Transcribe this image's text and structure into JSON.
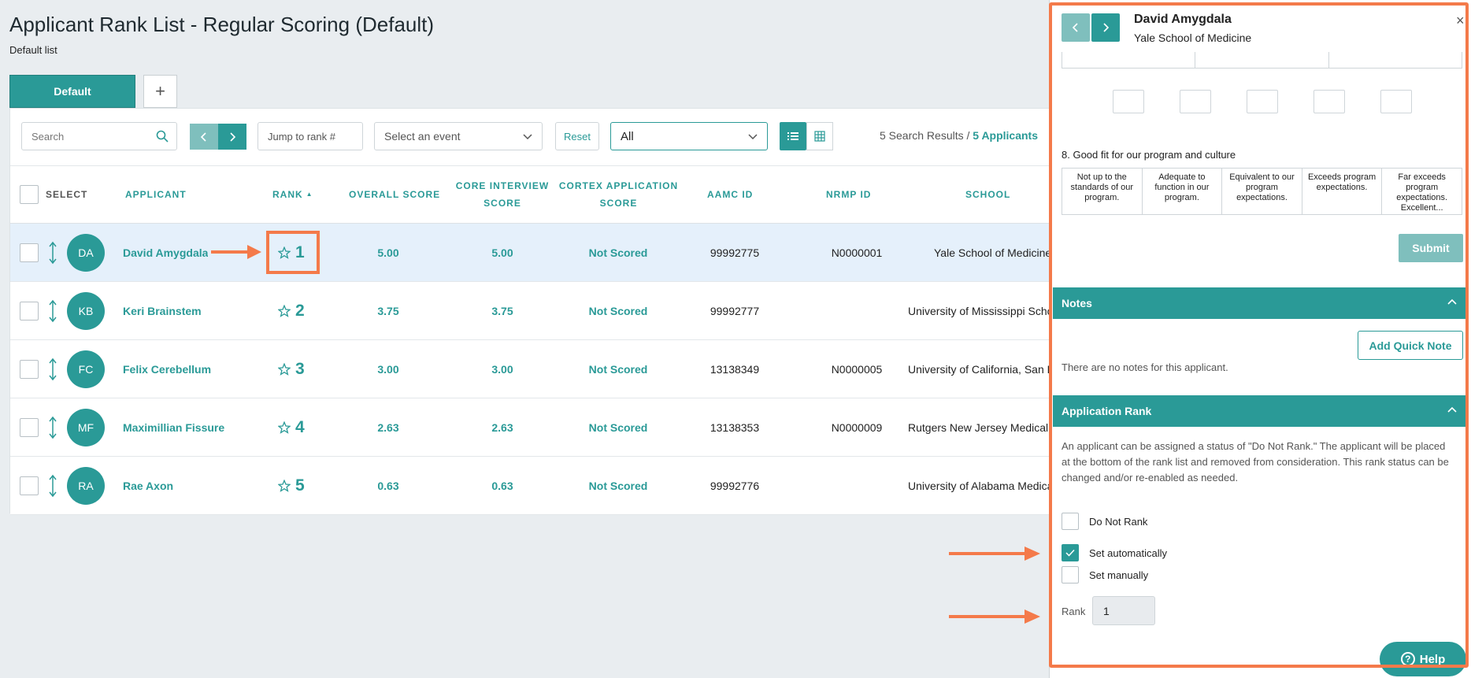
{
  "page": {
    "title": "Applicant Rank List - Regular Scoring (Default)",
    "subtitle": "Default list"
  },
  "tabs": {
    "default_label": "Default",
    "add_label": "+"
  },
  "toolbar": {
    "search_placeholder": "Search",
    "jump_placeholder": "Jump to rank #",
    "event_placeholder": "Select an event",
    "reset_label": "Reset",
    "filter_value": "All",
    "results_text": "5 Search Results / ",
    "results_apps": "5 Applicants"
  },
  "table": {
    "headers": {
      "select": "SELECT",
      "applicant": "APPLICANT",
      "rank": "RANK",
      "overall": "OVERALL SCORE",
      "core_1": "CORE INTERVIEW",
      "core_2": "SCORE",
      "cortex_1": "CORTEX APPLICATION",
      "cortex_2": "SCORE",
      "aamc": "AAMC ID",
      "nrmp": "NRMP ID",
      "school": "SCHOOL"
    },
    "rows": [
      {
        "initials": "DA",
        "name": "David Amygdala",
        "rank": "1",
        "overall": "5.00",
        "core": "5.00",
        "cortex": "Not Scored",
        "aamc": "99992775",
        "nrmp": "N0000001",
        "school": "Yale School of Medicine"
      },
      {
        "initials": "KB",
        "name": "Keri Brainstem",
        "rank": "2",
        "overall": "3.75",
        "core": "3.75",
        "cortex": "Not Scored",
        "aamc": "99992777",
        "nrmp": "",
        "school": "University of Mississippi School of Medicine"
      },
      {
        "initials": "FC",
        "name": "Felix Cerebellum",
        "rank": "3",
        "overall": "3.00",
        "core": "3.00",
        "cortex": "Not Scored",
        "aamc": "13138349",
        "nrmp": "N0000005",
        "school": "University of California, San Diego"
      },
      {
        "initials": "MF",
        "name": "Maximillian Fissure",
        "rank": "4",
        "overall": "2.63",
        "core": "2.63",
        "cortex": "Not Scored",
        "aamc": "13138353",
        "nrmp": "N0000009",
        "school": "Rutgers New Jersey Medical School"
      },
      {
        "initials": "RA",
        "name": "Rae Axon",
        "rank": "5",
        "overall": "0.63",
        "core": "0.63",
        "cortex": "Not Scored",
        "aamc": "99992776",
        "nrmp": "",
        "school": "University of Alabama Medical School"
      }
    ]
  },
  "drawer": {
    "applicant_name": "David Amygdala",
    "applicant_school": "Yale School of Medicine",
    "close_glyph": "×",
    "question_8": "8. Good fit for our program and culture",
    "scale": [
      "Not up to the standards of our program.",
      "Adequate to function in our program.",
      "Equivalent to our program expectations.",
      "Exceeds program expectations.",
      "Far exceeds program expectations. Excellent..."
    ],
    "submit_label": "Submit",
    "notes": {
      "title": "Notes",
      "add_label": "Add Quick Note",
      "empty_text": "There are no notes for this applicant."
    },
    "app_rank": {
      "title": "Application Rank",
      "description": "An applicant can be assigned a status of \"Do Not Rank.\" The applicant will be placed at the bottom of the rank list and removed from consideration. This rank status can be changed and/or re-enabled as needed.",
      "do_not_rank": "Do Not Rank",
      "set_auto": "Set automatically",
      "set_manual": "Set manually",
      "rank_label": "Rank",
      "rank_value": "1"
    }
  },
  "help_label": "Help",
  "colors": {
    "accent": "#2a9a97",
    "accent_light": "#7fbfbd",
    "annotation": "#f47a4a",
    "selected_row": "#e5f0fb"
  }
}
